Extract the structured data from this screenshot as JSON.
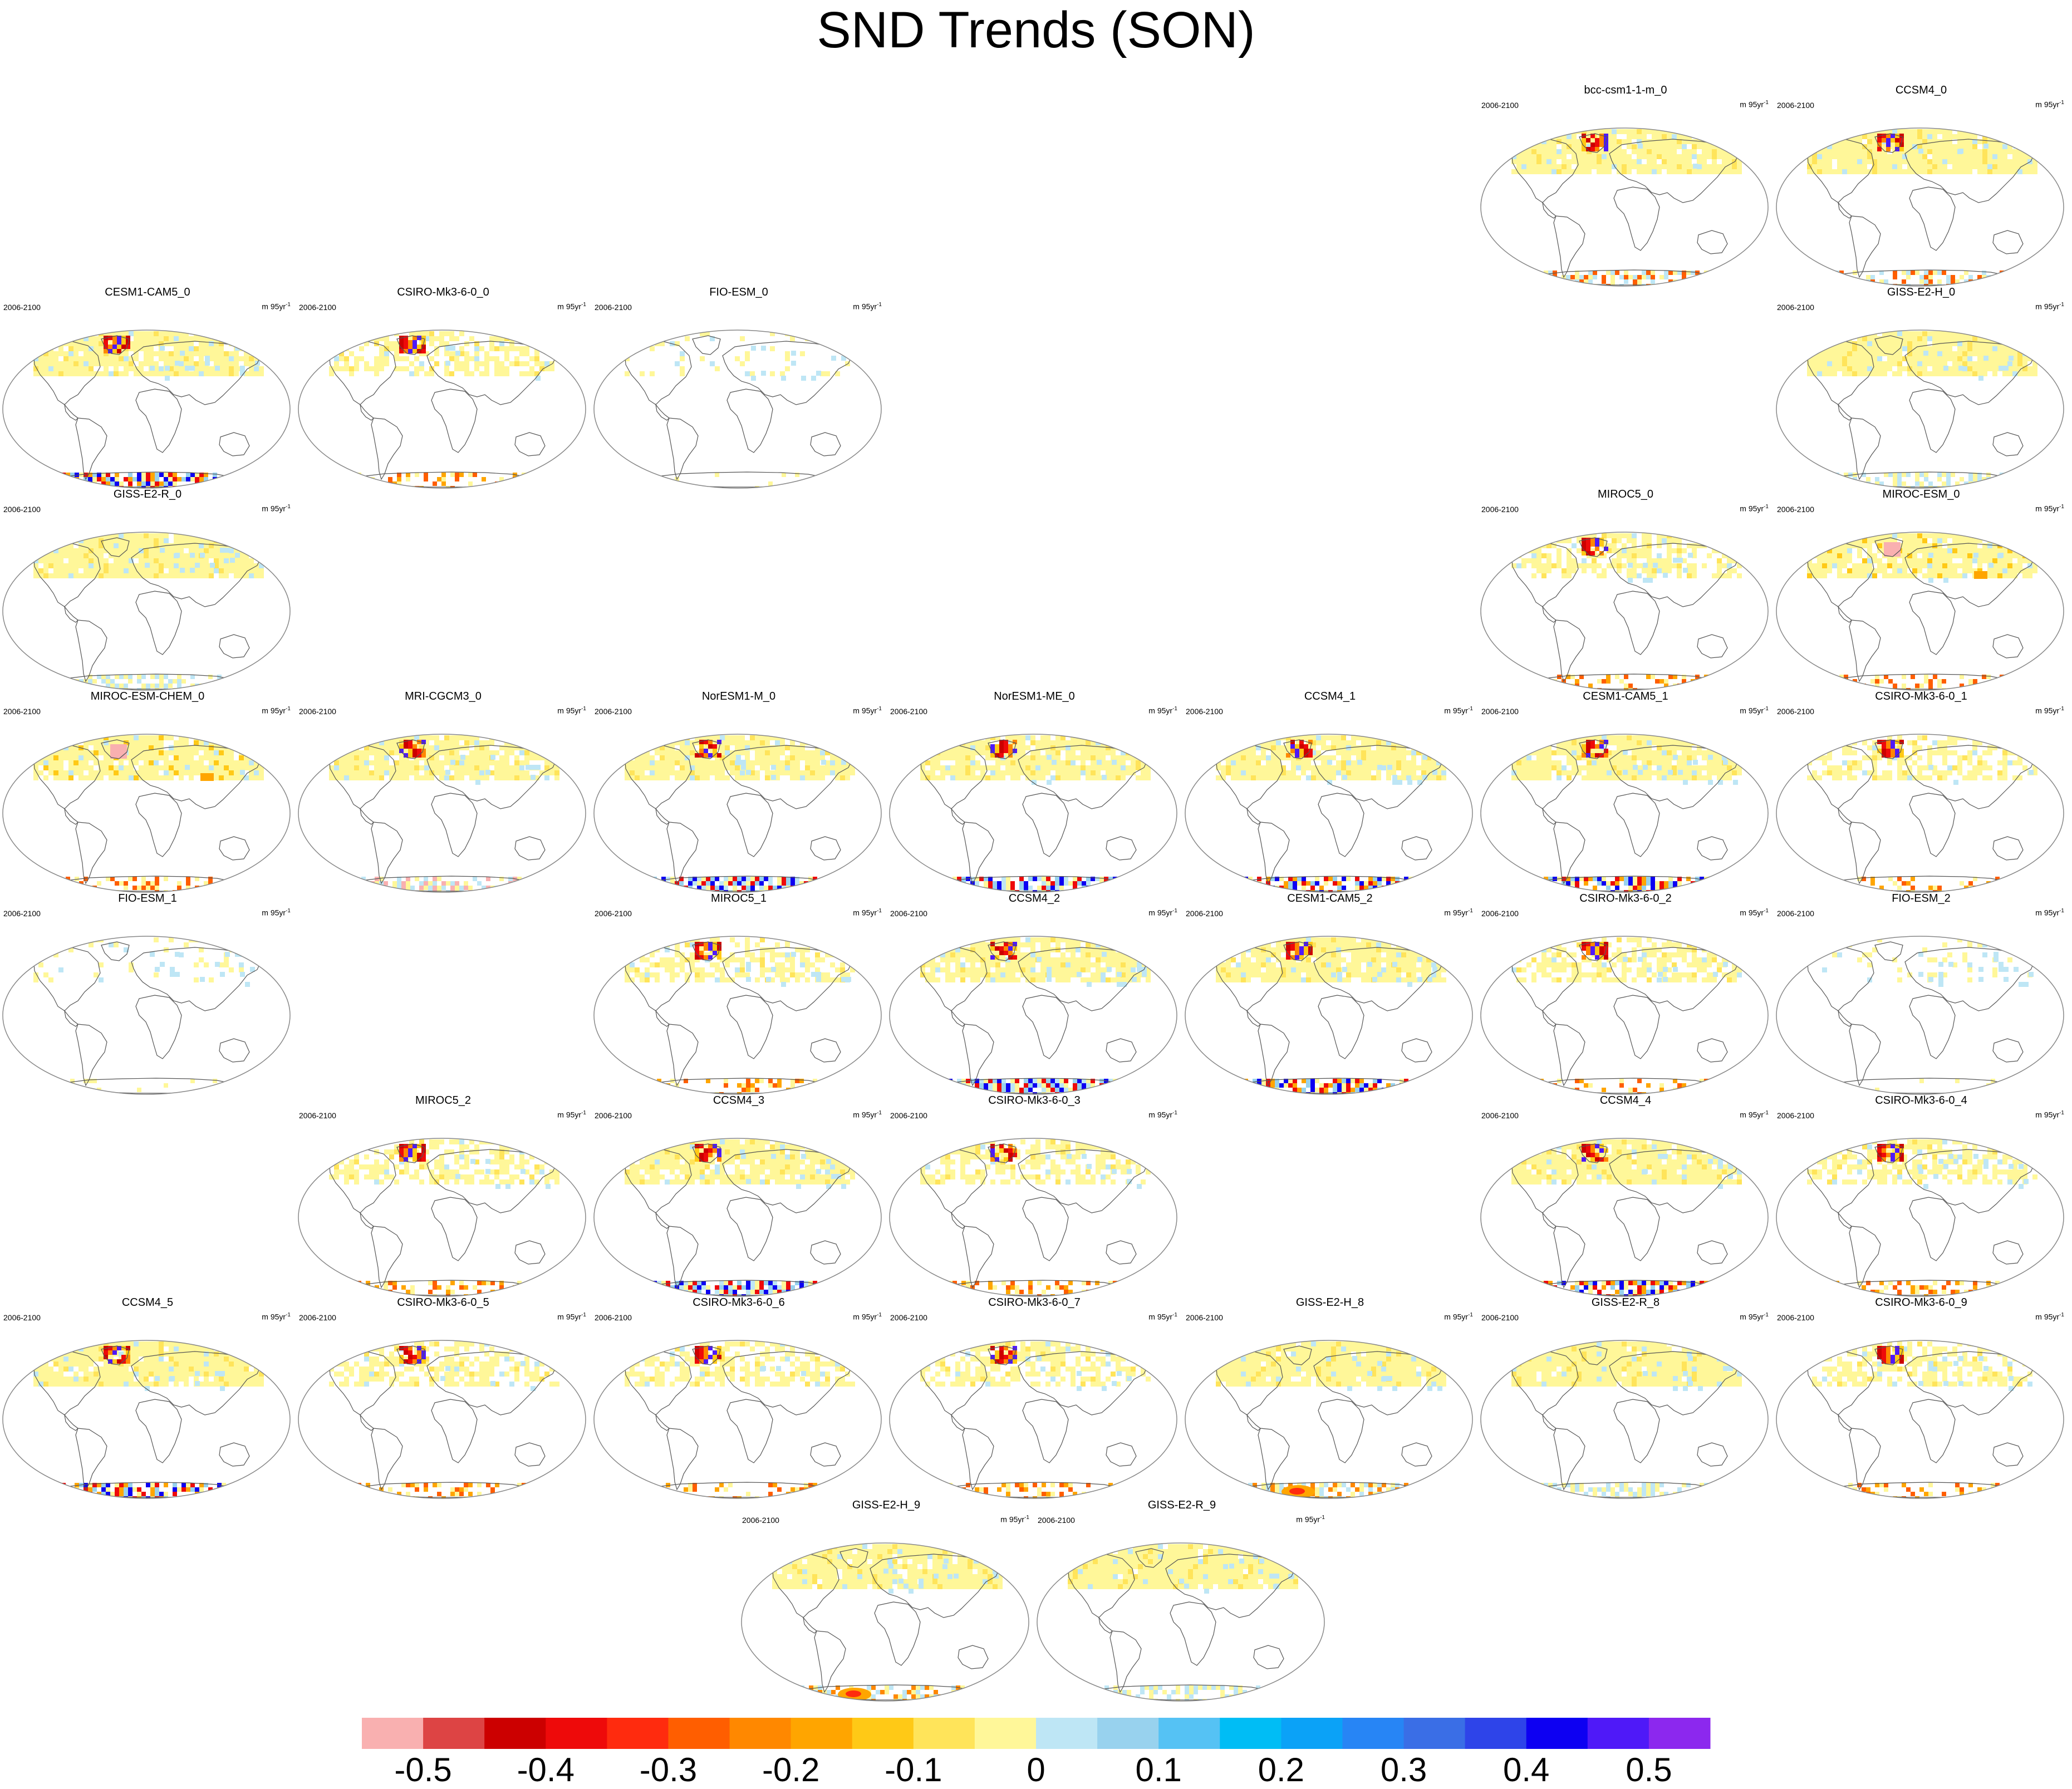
{
  "title": "SND Trends (SON)",
  "period_label": "2006-2100",
  "unit_label": "m 95yr",
  "unit_exp": "-1",
  "panels": [
    {
      "name": "bcc-csm1-1-m_0",
      "pattern": "std"
    },
    {
      "name": "CCSM4_0",
      "pattern": "std"
    },
    {
      "name": "CESM1-CAM5_0",
      "pattern": "mixed"
    },
    {
      "name": "CSIRO-Mk3-6-0_0",
      "pattern": "sparse"
    },
    {
      "name": "FIO-ESM_0",
      "pattern": "empty"
    },
    {
      "name": "GISS-E2-H_0",
      "pattern": "giss"
    },
    {
      "name": "GISS-E2-R_0",
      "pattern": "giss"
    },
    {
      "name": "MIROC5_0",
      "pattern": "sparse"
    },
    {
      "name": "MIROC-ESM_0",
      "pattern": "miroc"
    },
    {
      "name": "MIROC-ESM-CHEM_0",
      "pattern": "miroc"
    },
    {
      "name": "MRI-CGCM3_0",
      "pattern": "pinkant"
    },
    {
      "name": "NorESM1-M_0",
      "pattern": "blueant"
    },
    {
      "name": "NorESM1-ME_0",
      "pattern": "blueant"
    },
    {
      "name": "CCSM4_1",
      "pattern": "mixed"
    },
    {
      "name": "CESM1-CAM5_1",
      "pattern": "mixed"
    },
    {
      "name": "CSIRO-Mk3-6-0_1",
      "pattern": "sparse"
    },
    {
      "name": "FIO-ESM_1",
      "pattern": "empty"
    },
    {
      "name": "MIROC5_1",
      "pattern": "sparse"
    },
    {
      "name": "CCSM4_2",
      "pattern": "blueant"
    },
    {
      "name": "CESM1-CAM5_2",
      "pattern": "mixed"
    },
    {
      "name": "CSIRO-Mk3-6-0_2",
      "pattern": "sparse"
    },
    {
      "name": "FIO-ESM_2",
      "pattern": "empty"
    },
    {
      "name": "MIROC5_2",
      "pattern": "sparse"
    },
    {
      "name": "CCSM4_3",
      "pattern": "blueant"
    },
    {
      "name": "CSIRO-Mk3-6-0_3",
      "pattern": "sparse"
    },
    {
      "name": "CCSM4_4",
      "pattern": "mixed"
    },
    {
      "name": "CSIRO-Mk3-6-0_4",
      "pattern": "sparse"
    },
    {
      "name": "CCSM4_5",
      "pattern": "mixed"
    },
    {
      "name": "CSIRO-Mk3-6-0_5",
      "pattern": "sparse"
    },
    {
      "name": "CSIRO-Mk3-6-0_6",
      "pattern": "sparse"
    },
    {
      "name": "CSIRO-Mk3-6-0_7",
      "pattern": "sparse"
    },
    {
      "name": "GISS-E2-H_8",
      "pattern": "gisshot"
    },
    {
      "name": "GISS-E2-R_8",
      "pattern": "giss"
    },
    {
      "name": "CSIRO-Mk3-6-0_9",
      "pattern": "sparse"
    },
    {
      "name": "GISS-E2-H_9",
      "pattern": "gisshot"
    },
    {
      "name": "GISS-E2-R_9",
      "pattern": "giss"
    }
  ],
  "colorbar": {
    "colors": [
      "#f9b0b0",
      "#dd4444",
      "#cc0000",
      "#ee0a0a",
      "#ff2b0e",
      "#ff5e00",
      "#ff8800",
      "#ffa500",
      "#ffc916",
      "#ffe45a",
      "#fff799",
      "#bee6f5",
      "#98d2ee",
      "#55c2f4",
      "#00bdf5",
      "#0ba2f7",
      "#2785f5",
      "#3a6ee6",
      "#2e44e9",
      "#0d00f2",
      "#4f19f8",
      "#8c28ee"
    ],
    "tick_labels": [
      "-0.5",
      "-0.4",
      "-0.3",
      "-0.2",
      "-0.1",
      "0",
      "0.1",
      "0.2",
      "0.3",
      "0.4",
      "0.5"
    ]
  }
}
